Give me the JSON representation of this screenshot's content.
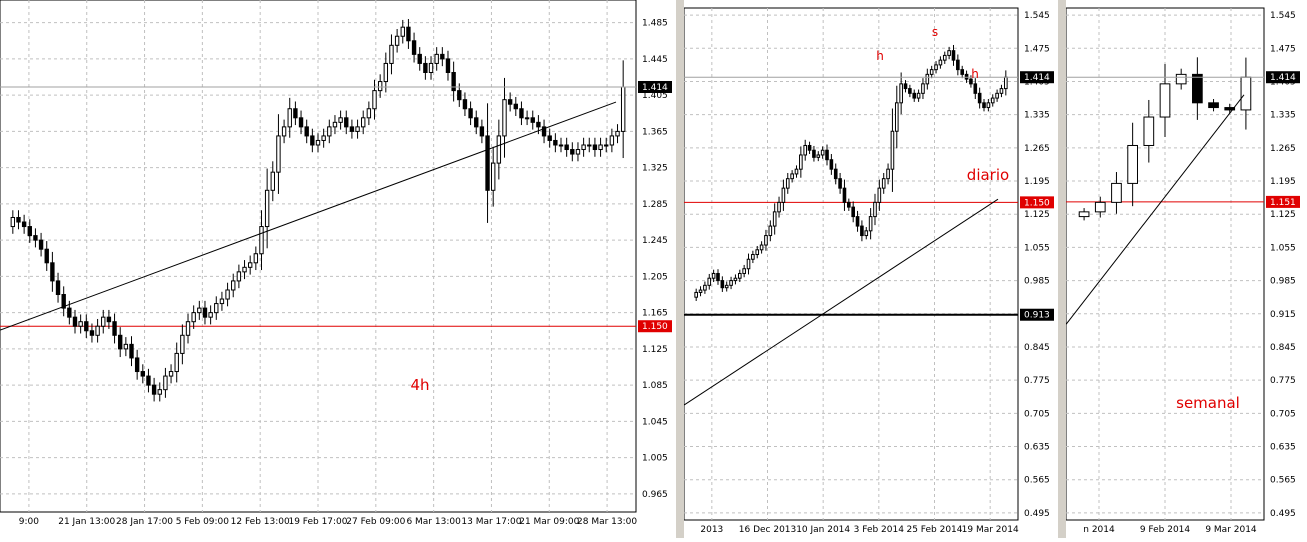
{
  "chart_data": [
    {
      "type": "candlestick",
      "timeframe_label": "4h",
      "price_axis_ticks": [
        "1.485",
        "1.445",
        "1.405",
        "1.365",
        "1.325",
        "1.285",
        "1.245",
        "1.205",
        "1.165",
        "1.125",
        "1.085",
        "1.045",
        "1.005",
        "0.965"
      ],
      "time_axis_ticks": [
        "9:00",
        "21 Jan 13:00",
        "28 Jan 17:00",
        "5 Feb 09:00",
        "12 Feb 13:00",
        "19 Feb 17:00",
        "27 Feb 09:00",
        "6 Mar 13:00",
        "13 Mar 17:00",
        "21 Mar 09:00",
        "28 Mar 13:00"
      ],
      "current_price": "1.414",
      "reference_level": "1.150",
      "ylim": [
        0.945,
        1.51
      ],
      "close_series": [
        1.27,
        1.265,
        1.26,
        1.25,
        1.245,
        1.235,
        1.22,
        1.2,
        1.185,
        1.17,
        1.16,
        1.15,
        1.155,
        1.145,
        1.14,
        1.15,
        1.16,
        1.155,
        1.14,
        1.125,
        1.13,
        1.115,
        1.1,
        1.095,
        1.085,
        1.075,
        1.08,
        1.095,
        1.1,
        1.12,
        1.14,
        1.155,
        1.165,
        1.17,
        1.16,
        1.165,
        1.175,
        1.18,
        1.19,
        1.2,
        1.21,
        1.215,
        1.22,
        1.23,
        1.26,
        1.3,
        1.32,
        1.36,
        1.37,
        1.39,
        1.38,
        1.37,
        1.36,
        1.35,
        1.355,
        1.36,
        1.37,
        1.375,
        1.38,
        1.37,
        1.365,
        1.37,
        1.38,
        1.39,
        1.41,
        1.42,
        1.44,
        1.46,
        1.47,
        1.48,
        1.465,
        1.45,
        1.44,
        1.43,
        1.44,
        1.45,
        1.445,
        1.43,
        1.41,
        1.4,
        1.39,
        1.38,
        1.37,
        1.36,
        1.3,
        1.33,
        1.36,
        1.4,
        1.395,
        1.39,
        1.38,
        1.38,
        1.375,
        1.37,
        1.36,
        1.355,
        1.35,
        1.35,
        1.345,
        1.34,
        1.345,
        1.35,
        1.35,
        1.345,
        1.35,
        1.35,
        1.36,
        1.365,
        1.414
      ]
    },
    {
      "type": "candlestick",
      "timeframe_label": "diario",
      "price_axis_ticks": [
        "1.545",
        "1.475",
        "1.405",
        "1.335",
        "1.265",
        "1.195",
        "1.125",
        "1.055",
        "0.985",
        "0.915",
        "0.845",
        "0.775",
        "0.705",
        "0.635",
        "0.565",
        "0.495"
      ],
      "time_axis_ticks": [
        "2013",
        "16 Dec 2013",
        "10 Jan 2014",
        "3 Feb 2014",
        "25 Feb 2014",
        "19 Mar 2014"
      ],
      "current_price": "1.414",
      "reference_levels": [
        "1.150",
        "0.913"
      ],
      "pattern_labels": [
        "h",
        "s",
        "h"
      ],
      "ylim": [
        0.48,
        1.56
      ],
      "close_series": [
        0.96,
        0.965,
        0.975,
        0.99,
        1.0,
        0.985,
        0.97,
        0.975,
        0.985,
        0.99,
        1.0,
        1.01,
        1.03,
        1.04,
        1.05,
        1.06,
        1.08,
        1.1,
        1.13,
        1.15,
        1.18,
        1.2,
        1.21,
        1.22,
        1.25,
        1.27,
        1.26,
        1.245,
        1.25,
        1.26,
        1.24,
        1.22,
        1.2,
        1.18,
        1.15,
        1.14,
        1.12,
        1.1,
        1.08,
        1.09,
        1.12,
        1.15,
        1.18,
        1.2,
        1.22,
        1.3,
        1.36,
        1.4,
        1.39,
        1.38,
        1.37,
        1.38,
        1.4,
        1.42,
        1.43,
        1.44,
        1.45,
        1.46,
        1.47,
        1.45,
        1.43,
        1.42,
        1.41,
        1.4,
        1.38,
        1.36,
        1.35,
        1.36,
        1.37,
        1.38,
        1.39,
        1.414
      ]
    },
    {
      "type": "candlestick",
      "timeframe_label": "semanal",
      "price_axis_ticks": [
        "1.545",
        "1.475",
        "1.405",
        "1.335",
        "1.265",
        "1.195",
        "1.125",
        "1.055",
        "0.985",
        "0.915",
        "0.845",
        "0.775",
        "0.705",
        "0.635",
        "0.565",
        "0.495"
      ],
      "time_axis_ticks": [
        "n 2014",
        "9 Feb 2014",
        "9 Mar 2014"
      ],
      "current_price": "1.414",
      "reference_level": "1.151",
      "ylim": [
        0.48,
        1.56
      ],
      "close_series": [
        1.13,
        1.15,
        1.19,
        1.27,
        1.33,
        1.4,
        1.42,
        1.36,
        1.35,
        1.345,
        1.414
      ]
    }
  ]
}
